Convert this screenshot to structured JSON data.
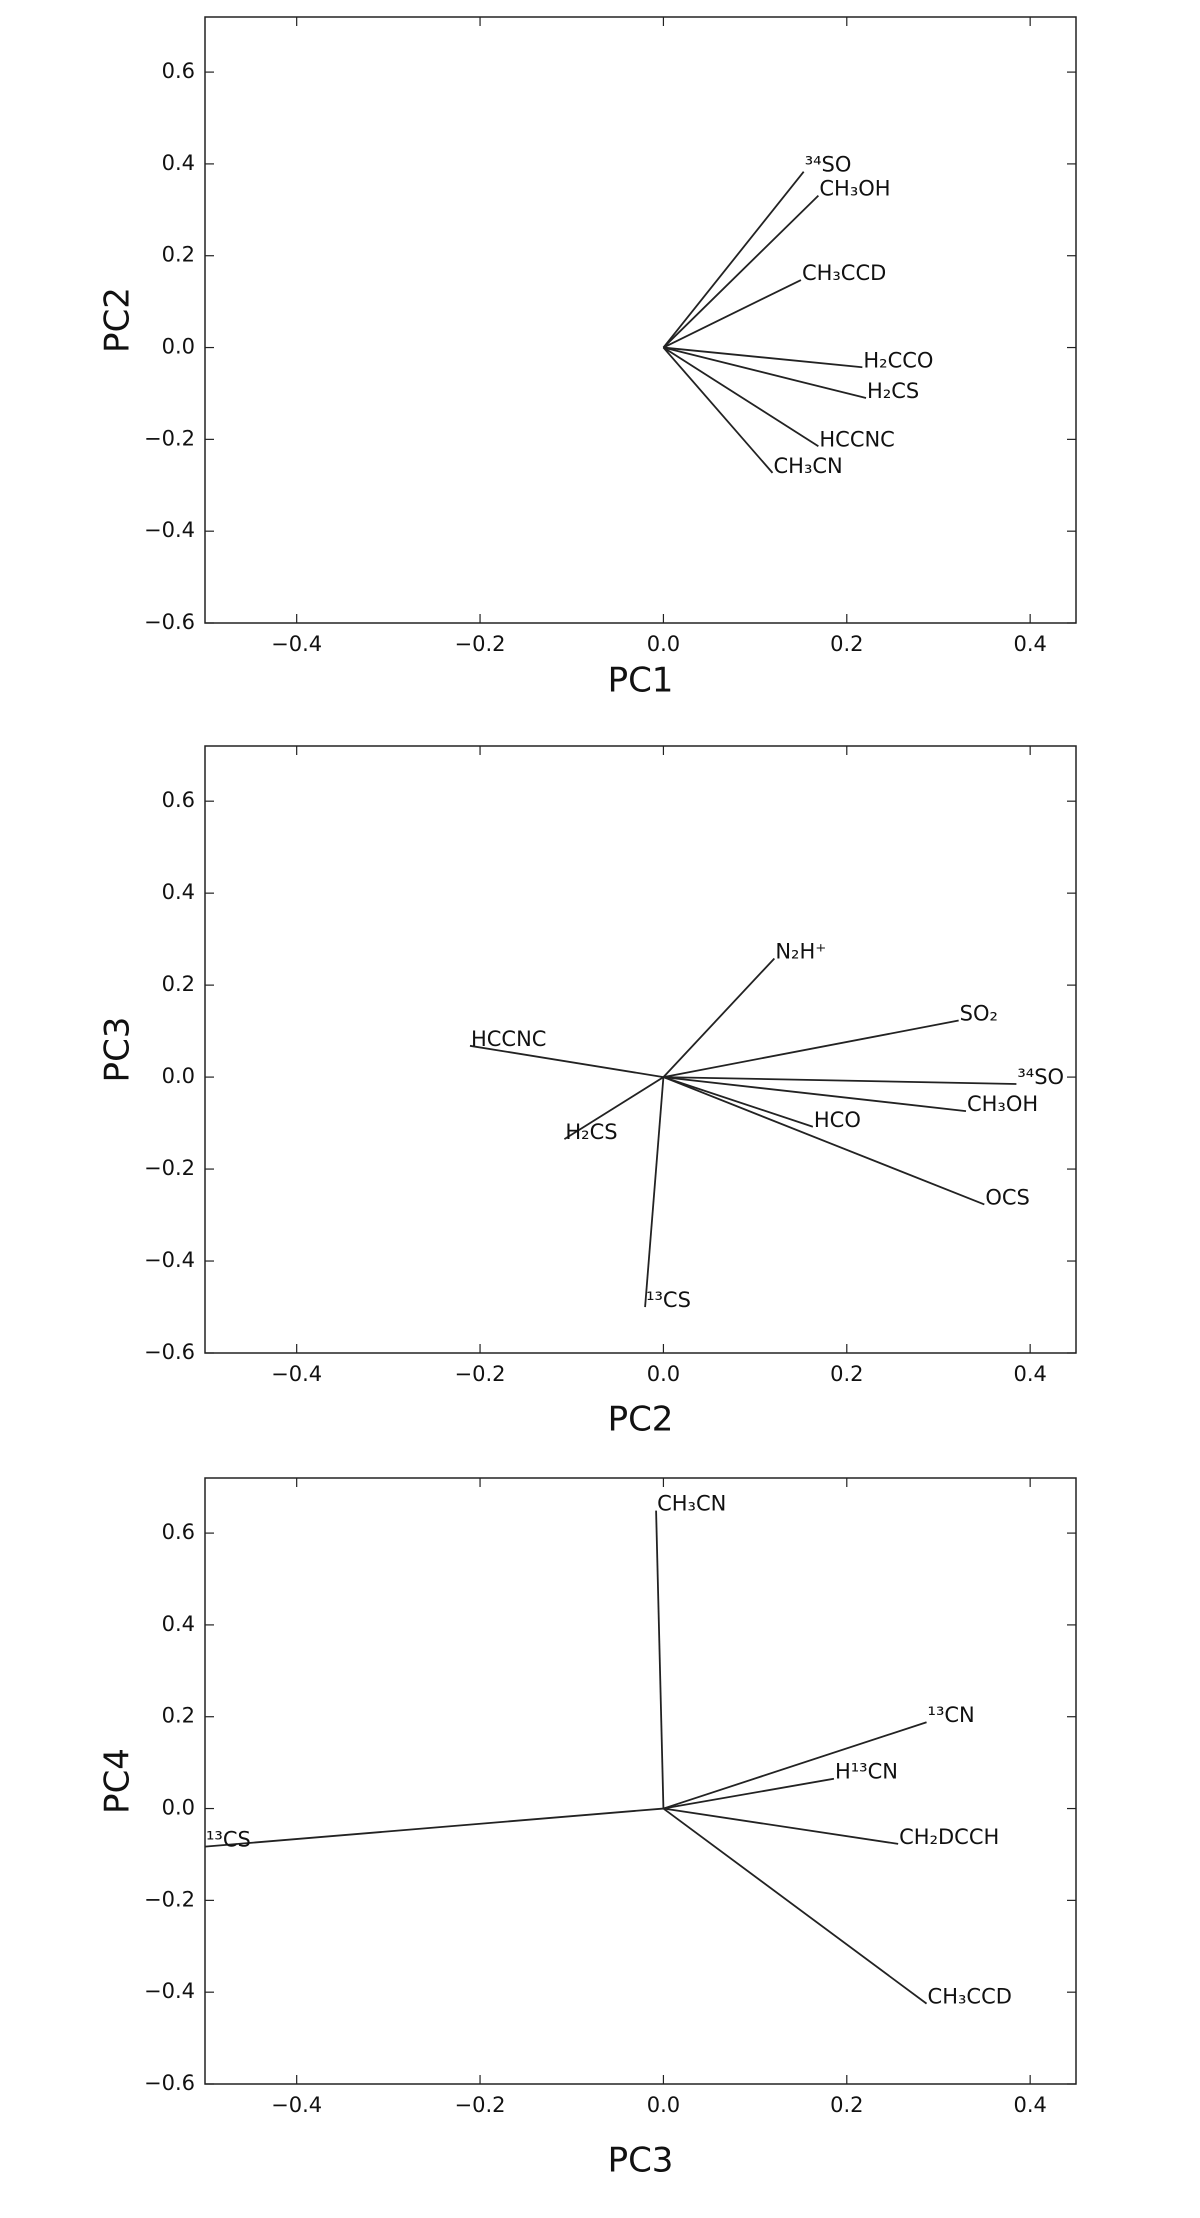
{
  "chart_data": [
    {
      "type": "biplot",
      "xlabel": "PC1",
      "ylabel": "PC2",
      "xlim": [
        -0.5,
        0.45
      ],
      "ylim": [
        -0.6,
        0.72
      ],
      "xticks": [
        {
          "value": -0.4,
          "label": "−0.4"
        },
        {
          "value": -0.2,
          "label": "−0.2"
        },
        {
          "value": 0,
          "label": "0.0"
        },
        {
          "value": 0.2,
          "label": "0.2"
        },
        {
          "value": 0.4,
          "label": "0.4"
        }
      ],
      "yticks": [
        {
          "value": -0.6,
          "label": "−0.6"
        },
        {
          "value": -0.4,
          "label": "−0.4"
        },
        {
          "value": -0.2,
          "label": "−0.2"
        },
        {
          "value": 0,
          "label": "0.0"
        },
        {
          "value": 0.2,
          "label": "0.2"
        },
        {
          "value": 0.4,
          "label": "0.4"
        },
        {
          "value": 0.6,
          "label": "0.6"
        }
      ],
      "color": "#222222",
      "vectors": [
        {
          "name": "³⁴SO",
          "x": 0.153,
          "y": 0.383
        },
        {
          "name": "CH₃OH",
          "x": 0.169,
          "y": 0.331
        },
        {
          "name": "CH₃CCD",
          "x": 0.15,
          "y": 0.147
        },
        {
          "name": "H₂CCO",
          "x": 0.217,
          "y": -0.043
        },
        {
          "name": "H₂CS",
          "x": 0.221,
          "y": -0.11
        },
        {
          "name": "HCCNC",
          "x": 0.169,
          "y": -0.215
        },
        {
          "name": "CH₃CN",
          "x": 0.119,
          "y": -0.273
        }
      ]
    },
    {
      "type": "biplot",
      "xlabel": "PC2",
      "ylabel": "PC3",
      "xlim": [
        -0.5,
        0.45
      ],
      "ylim": [
        -0.6,
        0.72
      ],
      "xticks": [
        {
          "value": -0.4,
          "label": "−0.4"
        },
        {
          "value": -0.2,
          "label": "−0.2"
        },
        {
          "value": 0,
          "label": "0.0"
        },
        {
          "value": 0.2,
          "label": "0.2"
        },
        {
          "value": 0.4,
          "label": "0.4"
        }
      ],
      "yticks": [
        {
          "value": -0.6,
          "label": "−0.6"
        },
        {
          "value": -0.4,
          "label": "−0.4"
        },
        {
          "value": -0.2,
          "label": "−0.2"
        },
        {
          "value": 0,
          "label": "0.0"
        },
        {
          "value": 0.2,
          "label": "0.2"
        },
        {
          "value": 0.4,
          "label": "0.4"
        },
        {
          "value": 0.6,
          "label": "0.6"
        }
      ],
      "color": "#222222",
      "vectors": [
        {
          "name": "N₂H⁺",
          "x": 0.121,
          "y": 0.258
        },
        {
          "name": "SO₂",
          "x": 0.322,
          "y": 0.123
        },
        {
          "name": "³⁴SO",
          "x": 0.385,
          "y": -0.015
        },
        {
          "name": "CH₃OH",
          "x": 0.33,
          "y": -0.074
        },
        {
          "name": "HCO",
          "x": 0.163,
          "y": -0.108
        },
        {
          "name": "OCS",
          "x": 0.35,
          "y": -0.277
        },
        {
          "name": "¹³CS",
          "x": -0.02,
          "y": -0.5
        },
        {
          "name": "H₂CS",
          "x": -0.108,
          "y": -0.135
        },
        {
          "name": "HCCNC",
          "x": -0.211,
          "y": 0.068
        }
      ]
    },
    {
      "type": "biplot",
      "xlabel": "PC3",
      "ylabel": "PC4",
      "xlim": [
        -0.5,
        0.45
      ],
      "ylim": [
        -0.6,
        0.72
      ],
      "xticks": [
        {
          "value": -0.4,
          "label": "−0.4"
        },
        {
          "value": -0.2,
          "label": "−0.2"
        },
        {
          "value": 0,
          "label": "0.0"
        },
        {
          "value": 0.2,
          "label": "0.2"
        },
        {
          "value": 0.4,
          "label": "0.4"
        }
      ],
      "yticks": [
        {
          "value": -0.6,
          "label": "−0.6"
        },
        {
          "value": -0.4,
          "label": "−0.4"
        },
        {
          "value": -0.2,
          "label": "−0.2"
        },
        {
          "value": 0,
          "label": "0.0"
        },
        {
          "value": 0.2,
          "label": "0.2"
        },
        {
          "value": 0.4,
          "label": "0.4"
        },
        {
          "value": 0.6,
          "label": "0.6"
        }
      ],
      "color": "#222222",
      "vectors": [
        {
          "name": "CH₃CN",
          "x": -0.008,
          "y": 0.649
        },
        {
          "name": "¹³CN",
          "x": 0.287,
          "y": 0.188
        },
        {
          "name": "H¹³CN",
          "x": 0.186,
          "y": 0.065
        },
        {
          "name": "CH₂DCCH",
          "x": 0.256,
          "y": -0.077
        },
        {
          "name": "CH₃CCD",
          "x": 0.287,
          "y": -0.425
        },
        {
          "name": "¹³CS",
          "x": -0.5,
          "y": -0.083
        }
      ]
    }
  ]
}
